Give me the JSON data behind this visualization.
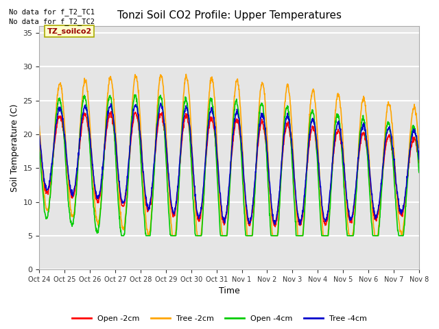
{
  "title": "Tonzi Soil CO2 Profile: Upper Temperatures",
  "ylabel": "Soil Temperature (C)",
  "xlabel": "Time",
  "ylim": [
    0,
    36
  ],
  "yticks": [
    0,
    5,
    10,
    15,
    20,
    25,
    30,
    35
  ],
  "background_color": "#e5e5e5",
  "grid_color": "white",
  "annotations": [
    "No data for f_T2_TC1",
    "No data for f_T2_TC2"
  ],
  "inset_label": "TZ_soilco2",
  "legend_labels": [
    "Open -2cm",
    "Tree -2cm",
    "Open -4cm",
    "Tree -4cm"
  ],
  "line_colors": [
    "#ff0000",
    "#ffa500",
    "#00cc00",
    "#0000cc"
  ],
  "xticklabels": [
    "Oct 24",
    "Oct 25",
    "Oct 26",
    "Oct 27",
    "Oct 28",
    "Oct 29",
    "Oct 30",
    "Oct 31",
    "Nov 1",
    "Nov 2",
    "Nov 3",
    "Nov 4",
    "Nov 5",
    "Nov 6",
    "Nov 7",
    "Nov 8"
  ],
  "n_days": 15,
  "n_points_per_day": 96,
  "figsize": [
    6.4,
    4.8
  ],
  "dpi": 100
}
